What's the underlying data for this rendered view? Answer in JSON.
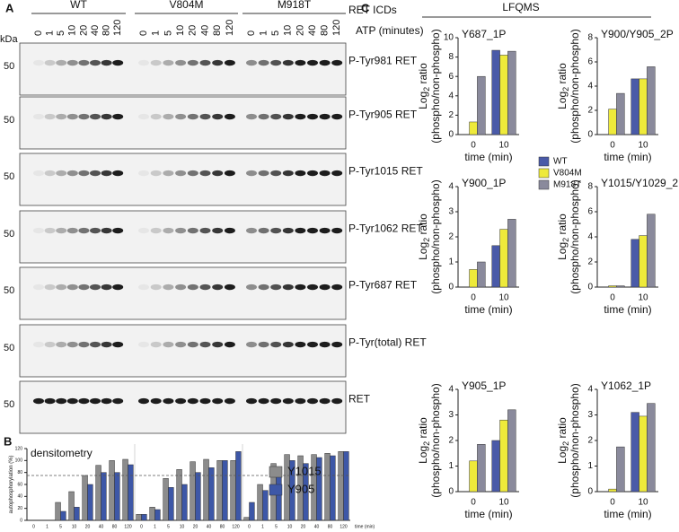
{
  "panels": {
    "a": "A",
    "b": "B",
    "c": "C"
  },
  "blots": {
    "kda": "kDa",
    "groups": [
      "WT",
      "V804M",
      "M918T"
    ],
    "group_caption": "RET ICDs",
    "time_caption": "ATP (minutes)",
    "times": [
      "0",
      "1",
      "5",
      "10",
      "20",
      "40",
      "80",
      "120"
    ],
    "marker": "50",
    "rows": [
      "P-Tyr981 RET",
      "P-Tyr905 RET",
      "P-Tyr1015 RET",
      "P-Tyr1062 RET",
      "P-Tyr687 RET",
      "P-Tyr(total) RET",
      "RET"
    ]
  },
  "lfqms_heading": "LFQMS",
  "chart_data": [
    {
      "type": "bar",
      "title": "densitometry",
      "ylabel": [
        "autophosphorylation (%)"
      ],
      "xlabel": "time (min)",
      "categories": [
        "0",
        "1",
        "5",
        "10",
        "20",
        "40",
        "80",
        "120",
        "0",
        "1",
        "5",
        "10",
        "20",
        "40",
        "80",
        "120",
        "0",
        "1",
        "5",
        "10",
        "20",
        "40",
        "80",
        "120"
      ],
      "series": [
        {
          "name": "Y1015",
          "color": "#8c8c8c",
          "values": [
            0,
            0,
            30,
            48,
            75,
            92,
            100,
            102,
            10,
            22,
            70,
            85,
            98,
            102,
            100,
            100,
            5,
            60,
            95,
            110,
            108,
            110,
            112,
            115
          ]
        },
        {
          "name": "Y905",
          "color": "#3d57a7",
          "values": [
            0,
            0,
            15,
            22,
            60,
            80,
            80,
            93,
            10,
            18,
            55,
            60,
            80,
            88,
            100,
            115,
            30,
            50,
            78,
            100,
            95,
            105,
            108,
            115
          ]
        }
      ],
      "ylim": [
        0,
        120
      ],
      "yticks": [
        0,
        20,
        40,
        60,
        80,
        100,
        120
      ],
      "reference_line": 75,
      "grid": false
    },
    {
      "type": "bar",
      "title": "Y687_1P",
      "ylabel": [
        "Log",
        "2",
        " ratio",
        "(phospho/non-phospho)"
      ],
      "xlabel": "time (min)",
      "categories": [
        "0",
        "10"
      ],
      "series": [
        {
          "name": "WT",
          "color": "#4a5aa8",
          "values": [
            null,
            8.7
          ]
        },
        {
          "name": "V804M",
          "color": "#eeea3a",
          "values": [
            1.3,
            8.2
          ]
        },
        {
          "name": "M918T",
          "color": "#8a8a9c",
          "values": [
            6.0,
            8.6
          ]
        }
      ],
      "ylim": [
        0,
        10
      ],
      "yticks": [
        0,
        2,
        4,
        6,
        8,
        10
      ],
      "grid": false
    },
    {
      "type": "bar",
      "title": "Y900/Y905_2P",
      "ylabel": [
        "Log",
        "2",
        " ratio",
        "(phospho/non-phospho)"
      ],
      "xlabel": "time (min)",
      "categories": [
        "0",
        "10"
      ],
      "series": [
        {
          "name": "WT",
          "color": "#4a5aa8",
          "values": [
            null,
            4.6
          ]
        },
        {
          "name": "V804M",
          "color": "#eeea3a",
          "values": [
            2.1,
            4.6
          ]
        },
        {
          "name": "M918T",
          "color": "#8a8a9c",
          "values": [
            3.4,
            5.6
          ]
        }
      ],
      "ylim": [
        0,
        8
      ],
      "yticks": [
        0,
        2,
        4,
        6,
        8
      ],
      "grid": false
    },
    {
      "type": "bar",
      "title": "Y900_1P",
      "ylabel": [
        "Log",
        "2",
        " ratio",
        "(phospho/non-phospho)"
      ],
      "xlabel": "time (min)",
      "categories": [
        "0",
        "10"
      ],
      "series": [
        {
          "name": "WT",
          "color": "#4a5aa8",
          "values": [
            null,
            1.65
          ]
        },
        {
          "name": "V804M",
          "color": "#eeea3a",
          "values": [
            0.7,
            2.3
          ]
        },
        {
          "name": "M918T",
          "color": "#8a8a9c",
          "values": [
            1.0,
            2.7
          ]
        }
      ],
      "ylim": [
        0,
        4
      ],
      "yticks": [
        0,
        1,
        2,
        3,
        4
      ],
      "grid": false
    },
    {
      "type": "bar",
      "title": "Y1015/Y1029_2P",
      "ylabel": [
        "Log",
        "2",
        " ratio",
        "(phospho/non-phospho)"
      ],
      "xlabel": "time (min)",
      "categories": [
        "0",
        "10"
      ],
      "series": [
        {
          "name": "WT",
          "color": "#4a5aa8",
          "values": [
            null,
            3.8
          ]
        },
        {
          "name": "V804M",
          "color": "#eeea3a",
          "values": [
            0.1,
            4.1
          ]
        },
        {
          "name": "M918T",
          "color": "#8a8a9c",
          "values": [
            0.1,
            5.8
          ]
        }
      ],
      "ylim": [
        0,
        8
      ],
      "yticks": [
        0,
        2,
        4,
        6,
        8
      ],
      "grid": false
    },
    {
      "type": "bar",
      "title": "Y905_1P",
      "ylabel": [
        "Log",
        "2",
        " ratio",
        "(phospho/non-phospho)"
      ],
      "xlabel": "time (min)",
      "categories": [
        "0",
        "10"
      ],
      "series": [
        {
          "name": "WT",
          "color": "#4a5aa8",
          "values": [
            null,
            2.0
          ]
        },
        {
          "name": "V804M",
          "color": "#eeea3a",
          "values": [
            1.2,
            2.8
          ]
        },
        {
          "name": "M918T",
          "color": "#8a8a9c",
          "values": [
            1.85,
            3.2
          ]
        }
      ],
      "ylim": [
        0,
        4
      ],
      "yticks": [
        0,
        1,
        2,
        3,
        4
      ],
      "grid": false
    },
    {
      "type": "bar",
      "title": "Y1062_1P",
      "ylabel": [
        "Log",
        "2",
        " ratio",
        "(phospho/non-phospho)"
      ],
      "xlabel": "time (min)",
      "categories": [
        "0",
        "10"
      ],
      "series": [
        {
          "name": "WT",
          "color": "#4a5aa8",
          "values": [
            null,
            3.1
          ]
        },
        {
          "name": "V804M",
          "color": "#eeea3a",
          "values": [
            0.1,
            2.95
          ]
        },
        {
          "name": "M918T",
          "color": "#8a8a9c",
          "values": [
            1.75,
            3.45
          ]
        }
      ],
      "ylim": [
        0,
        4
      ],
      "yticks": [
        0,
        1,
        2,
        3,
        4
      ],
      "grid": false
    }
  ]
}
